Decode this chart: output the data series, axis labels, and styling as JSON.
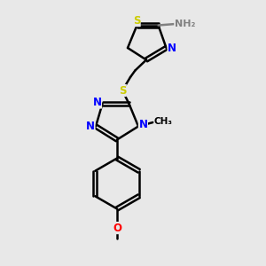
{
  "bg_color": "#e8e8e8",
  "atom_colors": {
    "C": "#000000",
    "N": "#0000ff",
    "S": "#cccc00",
    "O": "#ff0000",
    "H": "#808080"
  },
  "bond_color": "#000000",
  "bond_width": 1.8,
  "figsize": [
    3.0,
    3.0
  ],
  "dpi": 100,
  "xlim": [
    0,
    10
  ],
  "ylim": [
    0,
    10
  ]
}
